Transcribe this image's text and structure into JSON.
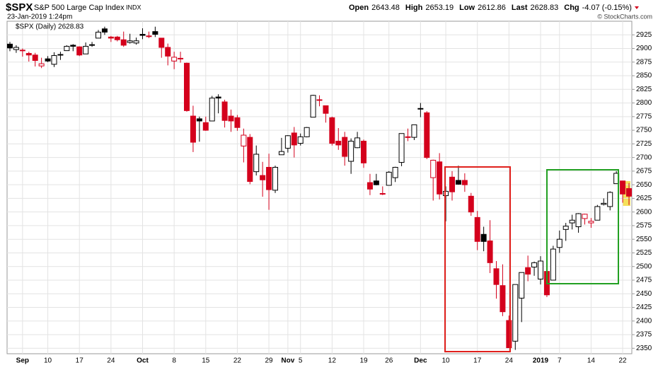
{
  "chart_data": {
    "type": "candlestick",
    "symbol": "$SPX",
    "name": "S&P 500 Large Cap Index",
    "exchange": "INDX",
    "timestamp": "23-Jan-2019 1:24pm",
    "quote": [
      {
        "label": "Open",
        "value": "2643.48"
      },
      {
        "label": "High",
        "value": "2653.19"
      },
      {
        "label": "Low",
        "value": "2612.86"
      },
      {
        "label": "Last",
        "value": "2628.83"
      },
      {
        "label": "Chg",
        "value": "-4.07 (-0.15%)"
      }
    ],
    "credit": "© StockCharts.com",
    "legend": "$SPX (Daily) 2628.83",
    "up_color": "#000000",
    "down_color": "#d4001c",
    "categories": [
      null,
      null,
      "Sep",
      null,
      null,
      null,
      "10",
      null,
      null,
      null,
      null,
      "17",
      null,
      null,
      null,
      null,
      "24",
      null,
      null,
      null,
      null,
      "Oct",
      null,
      null,
      null,
      null,
      "8",
      null,
      null,
      null,
      null,
      "15",
      null,
      null,
      null,
      null,
      "22",
      null,
      null,
      null,
      null,
      "29",
      null,
      null,
      "Nov",
      null,
      "5",
      null,
      null,
      null,
      null,
      "12",
      null,
      null,
      null,
      null,
      "19",
      null,
      null,
      null,
      "26",
      null,
      null,
      null,
      null,
      "Dec",
      null,
      null,
      null,
      "10",
      null,
      null,
      null,
      null,
      "17",
      null,
      null,
      null,
      null,
      "24",
      null,
      null,
      null,
      null,
      "2019",
      null,
      null,
      "7",
      null,
      null,
      null,
      null,
      "14",
      null,
      null,
      null,
      null,
      "22",
      null
    ],
    "open": [
      2908,
      2898,
      2897,
      2891,
      2888,
      2868,
      2881,
      2871,
      2889,
      2896,
      2906,
      2903,
      2890,
      2906,
      2919,
      2936,
      2921,
      2921,
      2916,
      2911,
      2910,
      2926,
      2923,
      2931,
      2919,
      2902,
      2877,
      2882,
      2873,
      2776,
      2771,
      2764,
      2767,
      2811,
      2802,
      2776,
      2773,
      2721,
      2737,
      2674,
      2667,
      2682,
      2640,
      2705,
      2717,
      2745,
      2726,
      2738,
      2774,
      2806,
      2795,
      2773,
      2730,
      2737,
      2693,
      2718,
      2730,
      2654,
      2657,
      2634,
      2649,
      2663,
      2691,
      2737,
      2737,
      2790,
      2782,
      2663,
      2692,
      2630,
      2664,
      2658,
      2658,
      2629,
      2590,
      2559,
      2547,
      2496,
      2465,
      2401,
      2363,
      2442,
      2498,
      2499,
      2477,
      2491,
      2475,
      2535,
      2568,
      2580,
      2573,
      2588,
      2580,
      2585,
      2614,
      2610,
      2652,
      2657,
      2643
    ],
    "high": [
      2912,
      2906,
      2900,
      2894,
      2892,
      2883,
      2886,
      2893,
      2894,
      2906,
      2908,
      2904,
      2911,
      2912,
      2934,
      2940,
      2923,
      2923,
      2931,
      2927,
      2920,
      2937,
      2931,
      2940,
      2919,
      2909,
      2894,
      2894,
      2874,
      2795,
      2775,
      2775,
      2813,
      2816,
      2806,
      2788,
      2778,
      2753,
      2743,
      2722,
      2692,
      2707,
      2685,
      2736,
      2741,
      2756,
      2744,
      2756,
      2815,
      2814,
      2795,
      2775,
      2754,
      2747,
      2735,
      2747,
      2733,
      2670,
      2670,
      2647,
      2675,
      2683,
      2744,
      2753,
      2760,
      2800,
      2785,
      2696,
      2708,
      2647,
      2675,
      2685,
      2671,
      2635,
      2602,
      2573,
      2585,
      2510,
      2504,
      2410,
      2467,
      2489,
      2520,
      2509,
      2519,
      2493,
      2538,
      2566,
      2580,
      2595,
      2598,
      2597,
      2589,
      2613,
      2625,
      2638,
      2675,
      2657,
      2653
    ],
    "low": [
      2895,
      2892,
      2885,
      2876,
      2867,
      2864,
      2875,
      2866,
      2879,
      2896,
      2895,
      2886,
      2890,
      2903,
      2919,
      2925,
      2912,
      2913,
      2903,
      2909,
      2907,
      2917,
      2919,
      2921,
      2883,
      2869,
      2862,
      2874,
      2784,
      2710,
      2729,
      2749,
      2767,
      2781,
      2755,
      2747,
      2749,
      2691,
      2651,
      2667,
      2628,
      2604,
      2635,
      2705,
      2709,
      2700,
      2722,
      2737,
      2774,
      2794,
      2764,
      2722,
      2714,
      2685,
      2670,
      2717,
      2681,
      2631,
      2649,
      2631,
      2649,
      2655,
      2684,
      2730,
      2732,
      2774,
      2697,
      2621,
      2623,
      2583,
      2621,
      2650,
      2637,
      2593,
      2530,
      2528,
      2488,
      2441,
      2409,
      2351,
      2347,
      2398,
      2473,
      2483,
      2467,
      2444,
      2475,
      2525,
      2547,
      2568,
      2562,
      2577,
      2571,
      2585,
      2612,
      2603,
      2652,
      2617,
      2613
    ],
    "close": [
      2901,
      2902,
      2896,
      2888,
      2878,
      2872,
      2877,
      2887,
      2888,
      2904,
      2904,
      2888,
      2904,
      2907,
      2930,
      2930,
      2919,
      2916,
      2906,
      2914,
      2914,
      2924,
      2923,
      2926,
      2902,
      2886,
      2884,
      2881,
      2786,
      2728,
      2767,
      2750,
      2809,
      2809,
      2768,
      2767,
      2755,
      2741,
      2656,
      2706,
      2659,
      2641,
      2682,
      2711,
      2740,
      2723,
      2738,
      2755,
      2814,
      2806,
      2781,
      2726,
      2723,
      2702,
      2730,
      2736,
      2690,
      2642,
      2650,
      2633,
      2673,
      2682,
      2744,
      2738,
      2760,
      2790,
      2700,
      2695,
      2633,
      2638,
      2637,
      2651,
      2650,
      2600,
      2546,
      2546,
      2507,
      2467,
      2417,
      2351,
      2467,
      2489,
      2486,
      2507,
      2510,
      2448,
      2532,
      2550,
      2574,
      2585,
      2597,
      2596,
      2583,
      2610,
      2616,
      2636,
      2671,
      2633,
      2629
    ],
    "ylim": [
      2340,
      2950
    ],
    "yticks": [
      2350,
      2375,
      2400,
      2425,
      2450,
      2475,
      2500,
      2525,
      2550,
      2575,
      2600,
      2625,
      2650,
      2675,
      2700,
      2725,
      2750,
      2775,
      2800,
      2825,
      2850,
      2875,
      2900,
      2925
    ],
    "grid": true
  }
}
